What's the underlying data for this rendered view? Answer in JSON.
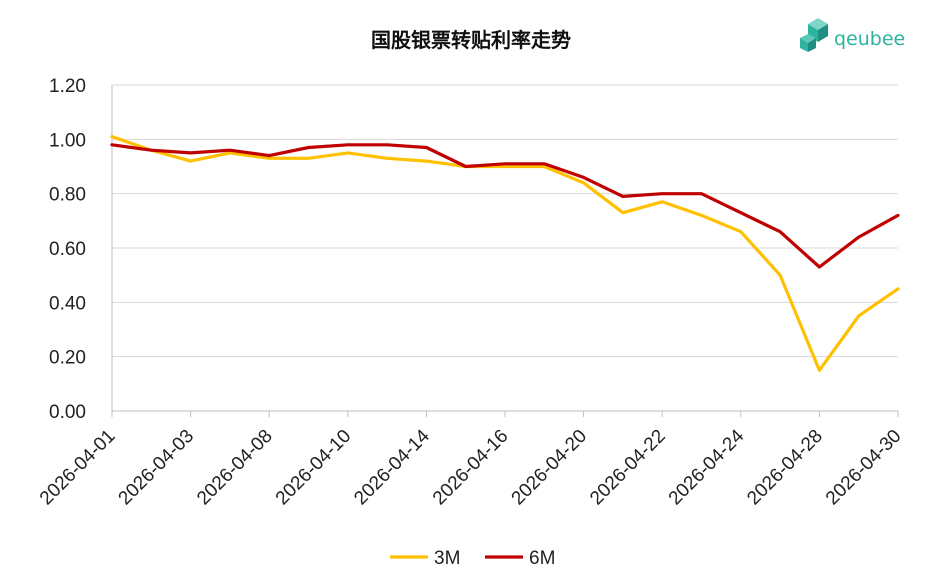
{
  "brand": {
    "name": "qeubee",
    "color": "#2db3a0"
  },
  "chart_data": {
    "type": "line",
    "title": "国股银票转贴利率走势",
    "xlabel": "",
    "ylabel": "",
    "ylim": [
      0,
      1.2
    ],
    "y_ticks": [
      "0.00",
      "0.20",
      "0.40",
      "0.60",
      "0.80",
      "1.00",
      "1.20"
    ],
    "x_tick_labels": [
      "2026-04-01",
      "2026-04-03",
      "2026-04-08",
      "2026-04-10",
      "2026-04-14",
      "2026-04-16",
      "2026-04-20",
      "2026-04-22",
      "2026-04-24",
      "2026-04-28",
      "2026-04-30"
    ],
    "grid": "horizontal",
    "legend_position": "bottom",
    "series": [
      {
        "name": "3M",
        "color": "#FFC000",
        "values": [
          1.01,
          0.96,
          0.92,
          0.95,
          0.93,
          0.93,
          0.95,
          0.93,
          0.92,
          0.9,
          0.9,
          0.9,
          0.84,
          0.73,
          0.77,
          0.72,
          0.66,
          0.5,
          0.15,
          0.35,
          0.45
        ]
      },
      {
        "name": "6M",
        "color": "#C00000",
        "values": [
          0.98,
          0.96,
          0.95,
          0.96,
          0.94,
          0.97,
          0.98,
          0.98,
          0.97,
          0.9,
          0.91,
          0.91,
          0.86,
          0.79,
          0.8,
          0.8,
          0.73,
          0.66,
          0.53,
          0.64,
          0.72
        ]
      }
    ]
  }
}
